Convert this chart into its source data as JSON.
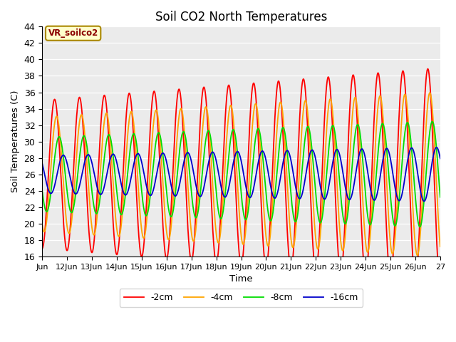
{
  "title": "Soil CO2 North Temperatures",
  "ylabel": "Soil Temperatures (C)",
  "xlabel": "Time",
  "annotation": "VR_soilco2",
  "ylim": [
    16,
    44
  ],
  "background_color": "#ebebeb",
  "series": {
    "-2cm": {
      "color": "#ff0000",
      "amplitude": 11.0,
      "phase_lag": 0.0,
      "mean": 26.0
    },
    "-4cm": {
      "color": "#ffa500",
      "amplitude": 8.5,
      "phase_lag": 0.08,
      "mean": 26.0
    },
    "-8cm": {
      "color": "#00dd00",
      "amplitude": 5.5,
      "phase_lag": 0.18,
      "mean": 26.0
    },
    "-16cm": {
      "color": "#0000cc",
      "amplitude": 2.8,
      "phase_lag": 0.35,
      "mean": 26.0
    }
  },
  "xtick_labels": [
    "Jun",
    "12Jun",
    "13Jun",
    "14Jun",
    "15Jun",
    "16Jun",
    "17Jun",
    "18Jun",
    "19Jun",
    "20Jun",
    "21Jun",
    "22Jun",
    "23Jun",
    "24Jun",
    "25Jun",
    "26Jun",
    "27"
  ],
  "xtick_positions": [
    11,
    12,
    13,
    14,
    15,
    16,
    17,
    18,
    19,
    20,
    21,
    22,
    23,
    24,
    25,
    26,
    27
  ],
  "yticks": [
    16,
    18,
    20,
    22,
    24,
    26,
    28,
    30,
    32,
    34,
    36,
    38,
    40,
    42,
    44
  ],
  "period_hours": 24,
  "start_day": 11,
  "end_day": 27,
  "points_per_day": 96
}
